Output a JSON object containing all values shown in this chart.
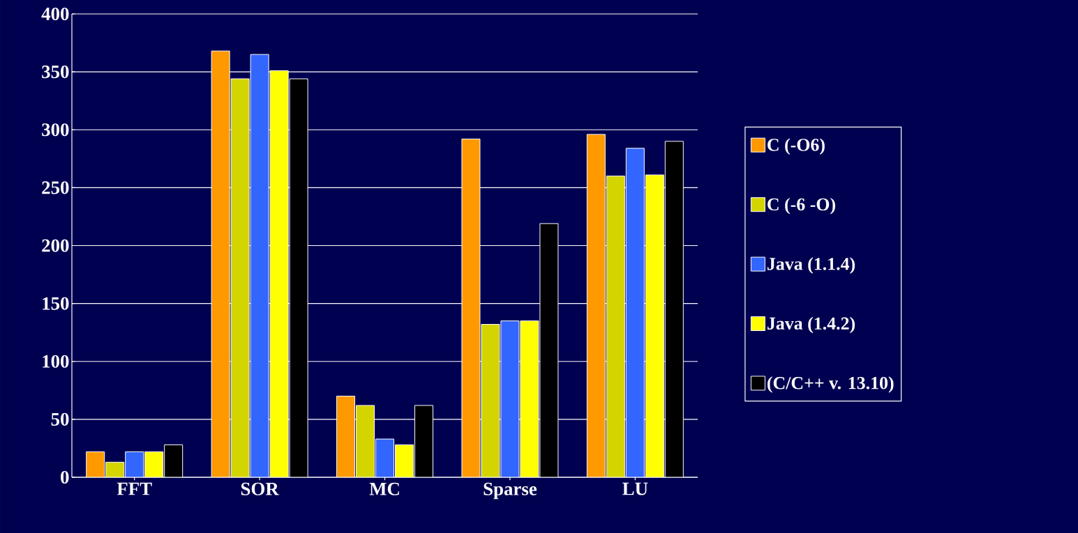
{
  "chart_data": {
    "type": "bar",
    "categories": [
      "FFT",
      "SOR",
      "MC",
      "Sparse",
      "LU"
    ],
    "series": [
      {
        "name": "C (-O6)",
        "color": "#ff9900",
        "values": [
          22,
          368,
          70,
          292,
          296
        ]
      },
      {
        "name": "C (-6 -O)",
        "color": "#d4d400",
        "values": [
          13,
          344,
          62,
          132,
          260
        ]
      },
      {
        "name": "Java (1.1.4)",
        "color": "#3366ff",
        "values": [
          22,
          365,
          33,
          135,
          284
        ]
      },
      {
        "name": "Java (1.4.2)",
        "color": "#ffff00",
        "values": [
          22,
          351,
          28,
          135,
          261
        ]
      },
      {
        "name": "(C/C++ v. 13.10)",
        "color": "#000000",
        "values": [
          28,
          344,
          62,
          219,
          290
        ]
      }
    ],
    "ylim": [
      0,
      400
    ],
    "yticks": [
      0,
      50,
      100,
      150,
      200,
      250,
      300,
      350,
      400
    ],
    "grid": "y",
    "legend": "right"
  }
}
